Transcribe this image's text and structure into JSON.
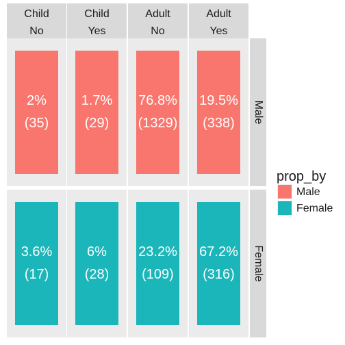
{
  "chart_data": {
    "type": "table",
    "column_strip": [
      {
        "line1": "Child",
        "line2": "No"
      },
      {
        "line1": "Child",
        "line2": "Yes"
      },
      {
        "line1": "Adult",
        "line2": "No"
      },
      {
        "line1": "Adult",
        "line2": "Yes"
      }
    ],
    "row_strip": [
      "Male",
      "Female"
    ],
    "cells": [
      [
        {
          "group": "Male",
          "pct": "2%",
          "count": "(35)"
        },
        {
          "group": "Male",
          "pct": "1.7%",
          "count": "(29)"
        },
        {
          "group": "Male",
          "pct": "76.8%",
          "count": "(1329)"
        },
        {
          "group": "Male",
          "pct": "19.5%",
          "count": "(338)"
        }
      ],
      [
        {
          "group": "Female",
          "pct": "3.6%",
          "count": "(17)"
        },
        {
          "group": "Female",
          "pct": "6%",
          "count": "(28)"
        },
        {
          "group": "Female",
          "pct": "23.2%",
          "count": "(109)"
        },
        {
          "group": "Female",
          "pct": "67.2%",
          "count": "(316)"
        }
      ]
    ],
    "legend": {
      "title": "prop_by",
      "placement": "right",
      "entries": [
        {
          "label": "Male",
          "color": "#F8766D"
        },
        {
          "label": "Female",
          "color": "#00BFC4"
        }
      ]
    }
  },
  "colors": {
    "male": "#F8766D",
    "female": "#1AB6BA",
    "panel": "#EBEBEB",
    "strip": "#D9D9D9"
  }
}
